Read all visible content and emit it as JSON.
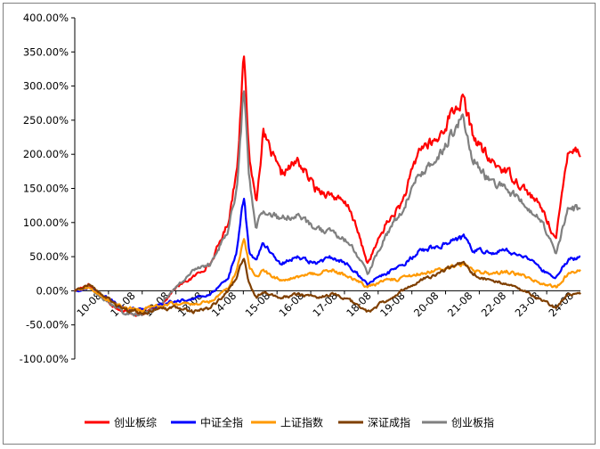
{
  "chart_data": {
    "type": "line",
    "y_tick_labels": [
      "400.00%",
      "350.00%",
      "300.00%",
      "250.00%",
      "200.00%",
      "150.00%",
      "100.00%",
      "50.00%",
      "0.00%",
      "-50.00%",
      "-100.00%"
    ],
    "y_ticks": [
      400,
      350,
      300,
      250,
      200,
      150,
      100,
      50,
      0,
      -50,
      -100
    ],
    "ylim": [
      -100,
      400
    ],
    "x_tick_labels": [
      "10-08",
      "11-08",
      "12-08",
      "13-08",
      "14-08",
      "15-08",
      "16-08",
      "17-08",
      "18-08",
      "19-08",
      "20-08",
      "21-08",
      "22-08",
      "23-08",
      "24-08"
    ],
    "x_range": [
      2010.6,
      2025.1
    ],
    "grid": false,
    "legend_position": "bottom",
    "x": [
      2010.6,
      2011.0,
      2011.5,
      2012.0,
      2012.5,
      2013.0,
      2013.5,
      2014.0,
      2014.5,
      2015.0,
      2015.25,
      2015.45,
      2015.6,
      2015.8,
      2016.0,
      2016.5,
      2017.0,
      2017.5,
      2018.0,
      2018.5,
      2019.0,
      2019.5,
      2020.0,
      2020.5,
      2021.0,
      2021.4,
      2021.75,
      2022.0,
      2022.5,
      2023.0,
      2023.5,
      2024.0,
      2024.4,
      2024.75,
      2025.1
    ],
    "series": [
      {
        "name": "创业板综",
        "color": "#ff0000",
        "values": [
          0,
          10,
          -15,
          -30,
          -35,
          -25,
          5,
          20,
          40,
          100,
          180,
          345,
          200,
          130,
          230,
          170,
          190,
          150,
          140,
          120,
          40,
          95,
          130,
          210,
          220,
          260,
          280,
          230,
          190,
          175,
          150,
          120,
          75,
          210,
          205
        ]
      },
      {
        "name": "中证全指",
        "color": "#0000ff",
        "values": [
          0,
          5,
          -10,
          -25,
          -28,
          -22,
          -15,
          -12,
          -5,
          20,
          60,
          140,
          60,
          45,
          70,
          40,
          50,
          40,
          50,
          35,
          10,
          25,
          35,
          60,
          65,
          75,
          78,
          60,
          55,
          60,
          50,
          30,
          20,
          45,
          50
        ]
      },
      {
        "name": "上证指数",
        "color": "#ff9900",
        "values": [
          0,
          5,
          -12,
          -25,
          -28,
          -22,
          -18,
          -20,
          -15,
          5,
          30,
          80,
          35,
          20,
          30,
          15,
          20,
          25,
          30,
          20,
          5,
          15,
          18,
          25,
          30,
          35,
          38,
          32,
          25,
          28,
          22,
          10,
          5,
          25,
          30
        ]
      },
      {
        "name": "深证成指",
        "color": "#7f3f00",
        "values": [
          0,
          10,
          -10,
          -28,
          -32,
          -28,
          -25,
          -30,
          -25,
          0,
          20,
          50,
          10,
          -10,
          0,
          -10,
          -5,
          -10,
          -5,
          -15,
          -30,
          -15,
          0,
          15,
          25,
          35,
          40,
          25,
          15,
          10,
          0,
          -15,
          -25,
          -5,
          -5
        ]
      },
      {
        "name": "创业板指",
        "color": "#808080",
        "values": [
          0,
          5,
          -15,
          -32,
          -35,
          -25,
          5,
          30,
          40,
          90,
          150,
          300,
          165,
          95,
          120,
          105,
          110,
          90,
          85,
          70,
          25,
          80,
          120,
          175,
          190,
          230,
          255,
          195,
          160,
          150,
          125,
          100,
          55,
          120,
          120
        ]
      }
    ]
  }
}
